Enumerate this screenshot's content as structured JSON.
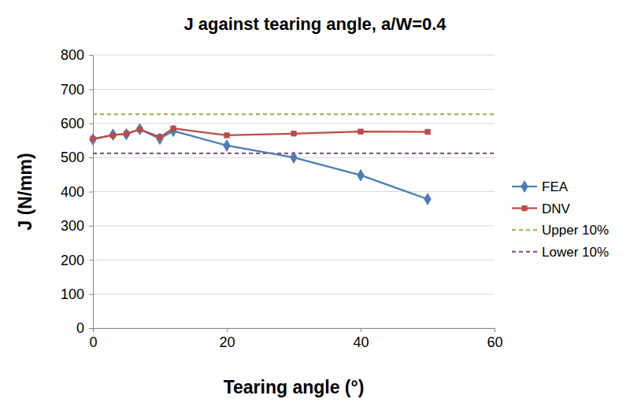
{
  "chart_data": {
    "type": "line",
    "title": "J against tearing angle, a/W=0.4",
    "x_label": "Tearing angle (°)",
    "y_label": "J (N/mm)",
    "xlim": [
      0,
      60
    ],
    "xticks": [
      0,
      20,
      40,
      60
    ],
    "ylim": [
      0,
      800
    ],
    "yticks": [
      0,
      100,
      200,
      300,
      400,
      500,
      600,
      700,
      800
    ],
    "grid": true,
    "legend": "right",
    "series": [
      {
        "name": "FEA",
        "color": "#4a7ebb",
        "marker": "diamond",
        "line_style": "solid",
        "x": [
          0,
          3,
          5,
          7,
          10,
          12,
          20,
          30,
          40,
          50
        ],
        "values": [
          553,
          567,
          568,
          583,
          555,
          578,
          535,
          500,
          448,
          378
        ]
      },
      {
        "name": "DNV",
        "color": "#be4b48",
        "marker": "square",
        "line_style": "solid",
        "x": [
          0,
          3,
          5,
          7,
          10,
          12,
          20,
          30,
          40,
          50
        ],
        "values": [
          555,
          565,
          570,
          582,
          560,
          585,
          565,
          570,
          576,
          575
        ]
      },
      {
        "name": "Upper 10%",
        "color": "#9bbb59",
        "line_style": "dashed",
        "x": [
          0,
          60
        ],
        "values": [
          627,
          627
        ]
      },
      {
        "name": "Lower 10%",
        "color": "#7f6084",
        "line_style": "dashed",
        "x": [
          0,
          60
        ],
        "values": [
          512,
          512
        ]
      }
    ]
  }
}
